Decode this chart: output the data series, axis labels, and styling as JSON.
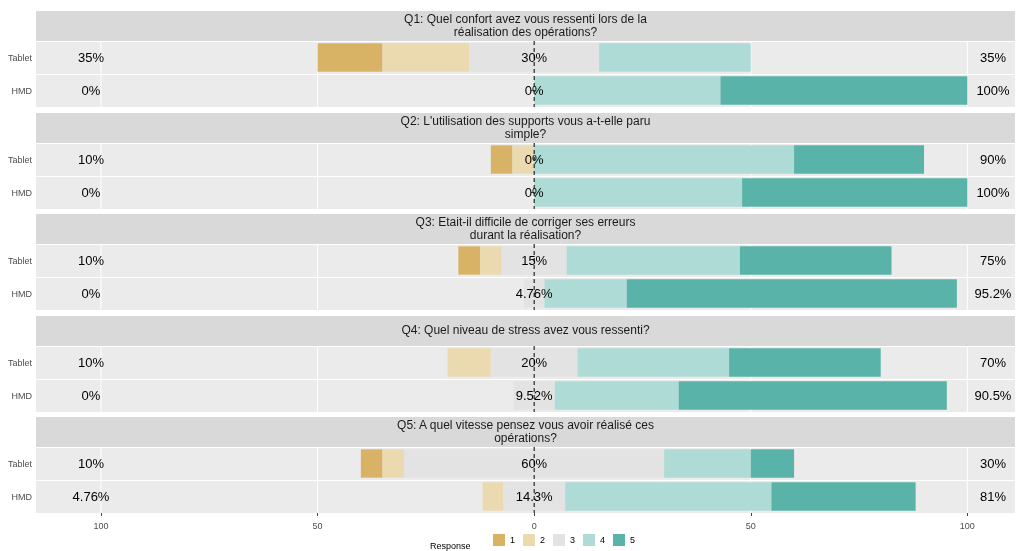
{
  "chart_data": [
    {
      "type": "bar",
      "orientation": "horizontal",
      "title": "Q1: Quel confort avez vous ressenti lors de la\nréalisation des opérations?",
      "categories": [
        "Tablet",
        "HMD"
      ],
      "series": [
        {
          "color": "#d9b365",
          "values": [
            15,
            0
          ],
          "base": [
            -50,
            null
          ]
        },
        {
          "color": "#ebd9b0",
          "values": [
            20,
            0
          ],
          "base": [
            -35,
            null
          ]
        },
        {
          "color": "#e3e3e3",
          "values": [
            30,
            0
          ],
          "base": [
            -15,
            null
          ],
          "value_labels": [
            "30%",
            "0%"
          ]
        },
        {
          "color": "#afdbd7",
          "values": [
            35,
            43
          ],
          "base": [
            15,
            0
          ]
        },
        {
          "color": "#5ab3a9",
          "values": [
            0,
            57
          ],
          "base": [
            null,
            43
          ]
        }
      ],
      "xlim": [
        -115,
        111
      ],
      "tick_labels": "y",
      "grid": true,
      "legend": false,
      "ref_lines": [
        {
          "axis": "x",
          "value": 0,
          "line_style": "dashed",
          "color": "#000000"
        }
      ],
      "annotations": [
        "35%",
        "35%",
        "0%",
        "100%"
      ]
    },
    {
      "type": "bar",
      "orientation": "horizontal",
      "title": "Q2: L'utilisation des supports vous a-t-elle paru\nsimple?",
      "categories": [
        "Tablet",
        "HMD"
      ],
      "series": [
        {
          "color": "#d9b365",
          "values": [
            5,
            0
          ],
          "base": [
            -10,
            null
          ]
        },
        {
          "color": "#ebd9b0",
          "values": [
            5,
            0
          ],
          "base": [
            -5,
            null
          ]
        },
        {
          "color": "#e3e3e3",
          "values": [
            0,
            0
          ],
          "base": [
            null,
            null
          ],
          "value_labels": [
            "0%",
            "0%"
          ]
        },
        {
          "color": "#afdbd7",
          "values": [
            60,
            48
          ],
          "base": [
            0,
            0
          ]
        },
        {
          "color": "#5ab3a9",
          "values": [
            30,
            52
          ],
          "base": [
            60,
            48
          ]
        }
      ],
      "xlim": [
        -115,
        111
      ],
      "tick_labels": "y",
      "grid": true,
      "legend": false,
      "ref_lines": [
        {
          "axis": "x",
          "value": 0,
          "line_style": "dashed",
          "color": "#000000"
        }
      ],
      "annotations": [
        "10%",
        "90%",
        "0%",
        "100%"
      ]
    },
    {
      "type": "bar",
      "orientation": "horizontal",
      "title": "Q3: Etait-il difficile de corriger ses erreurs\ndurant la réalisation?",
      "categories": [
        "Tablet",
        "HMD"
      ],
      "series": [
        {
          "color": "#d9b365",
          "values": [
            5,
            0
          ],
          "base": [
            -17.5,
            null
          ]
        },
        {
          "color": "#ebd9b0",
          "values": [
            5,
            0
          ],
          "base": [
            -12.5,
            null
          ]
        },
        {
          "color": "#e3e3e3",
          "values": [
            15,
            4.76
          ],
          "base": [
            -7.5,
            -2.38
          ],
          "value_labels": [
            "15%",
            "4.76%"
          ]
        },
        {
          "color": "#afdbd7",
          "values": [
            40,
            19
          ],
          "base": [
            7.5,
            2.38
          ]
        },
        {
          "color": "#5ab3a9",
          "values": [
            35,
            76.2
          ],
          "base": [
            47.5,
            21.38
          ]
        }
      ],
      "xlim": [
        -115,
        111
      ],
      "tick_labels": "y",
      "grid": true,
      "legend": false,
      "ref_lines": [
        {
          "axis": "x",
          "value": 0,
          "line_style": "dashed",
          "color": "#000000"
        }
      ],
      "annotations": [
        "10%",
        "75%",
        "0%",
        "95.2%"
      ]
    },
    {
      "type": "bar",
      "orientation": "horizontal",
      "title": "Q4: Quel niveau de stress avez vous ressenti?",
      "categories": [
        "Tablet",
        "HMD"
      ],
      "series": [
        {
          "color": "#d9b365",
          "values": [
            0,
            0
          ],
          "base": [
            null,
            null
          ]
        },
        {
          "color": "#ebd9b0",
          "values": [
            10,
            0
          ],
          "base": [
            -20,
            null
          ]
        },
        {
          "color": "#e3e3e3",
          "values": [
            20,
            9.52
          ],
          "base": [
            -10,
            -4.76
          ],
          "value_labels": [
            "20%",
            "9.52%"
          ]
        },
        {
          "color": "#afdbd7",
          "values": [
            35,
            28.6
          ],
          "base": [
            10,
            4.76
          ]
        },
        {
          "color": "#5ab3a9",
          "values": [
            35,
            61.9
          ],
          "base": [
            45,
            33.36
          ]
        }
      ],
      "xlim": [
        -115,
        111
      ],
      "tick_labels": "y",
      "grid": true,
      "legend": false,
      "ref_lines": [
        {
          "axis": "x",
          "value": 0,
          "line_style": "dashed",
          "color": "#000000"
        }
      ],
      "annotations": [
        "10%",
        "70%",
        "0%",
        "90.5%"
      ]
    },
    {
      "type": "bar",
      "orientation": "horizontal",
      "title": "Q5: A quel vitesse pensez vous avoir réalisé ces\nopérations?",
      "categories": [
        "Tablet",
        "HMD"
      ],
      "series": [
        {
          "name": "1",
          "color": "#d9b365",
          "values": [
            5,
            0
          ],
          "base": [
            -40,
            null
          ]
        },
        {
          "name": "2",
          "color": "#ebd9b0",
          "values": [
            5,
            4.76
          ],
          "base": [
            -35,
            -11.9
          ]
        },
        {
          "name": "3",
          "color": "#e3e3e3",
          "values": [
            60,
            14.3
          ],
          "base": [
            -30,
            -7.14
          ],
          "value_labels": [
            "60%",
            "14.3%"
          ]
        },
        {
          "name": "4",
          "color": "#afdbd7",
          "values": [
            20,
            47.6
          ],
          "base": [
            30,
            7.16
          ]
        },
        {
          "name": "5",
          "color": "#5ab3a9",
          "values": [
            10,
            33.3
          ],
          "base": [
            50,
            54.76
          ]
        }
      ],
      "xlim": [
        -115,
        111
      ],
      "xticks": [
        {
          "value": -100,
          "label": "100"
        },
        {
          "value": -50,
          "label": "50"
        },
        0,
        50,
        100
      ],
      "grid": true,
      "legend": "bottom",
      "legend_title": "Response",
      "ref_lines": [
        {
          "axis": "x",
          "value": 0,
          "line_style": "dashed",
          "color": "#000000"
        }
      ],
      "annotations": [
        "10%",
        "30%",
        "4.76%",
        "81%"
      ]
    }
  ]
}
